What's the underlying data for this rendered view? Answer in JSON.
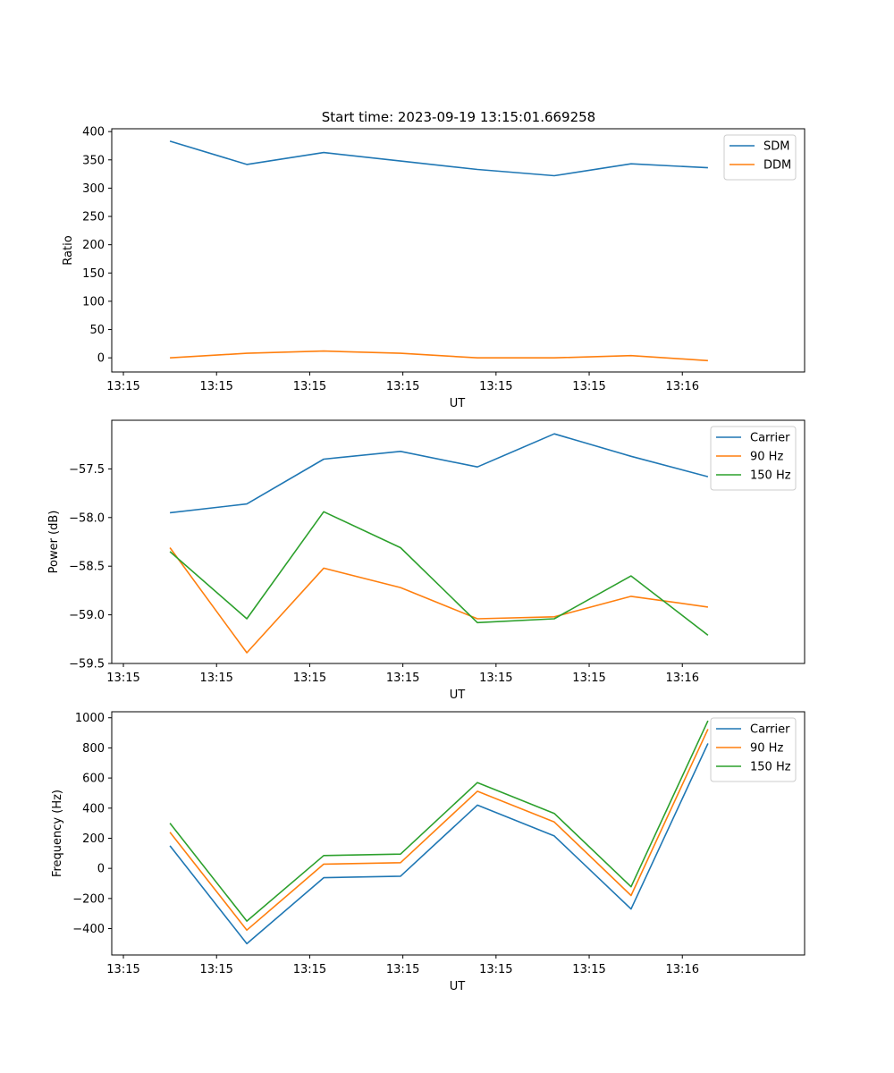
{
  "figure": {
    "title": "Start time: 2023-09-19 13:15:01.669258"
  },
  "chart_data": [
    {
      "type": "line",
      "title": "Start time: 2023-09-19 13:15:01.669258",
      "xlabel": "UT",
      "ylabel": "Ratio",
      "x_tick_labels": [
        "13:15",
        "13:15",
        "13:15",
        "13:15",
        "13:15",
        "13:15",
        "13:16"
      ],
      "y_ticks": [
        0,
        50,
        100,
        150,
        200,
        250,
        300,
        350,
        400
      ],
      "y_tick_labels": [
        "0",
        "50",
        "100",
        "150",
        "200",
        "250",
        "300",
        "350",
        "400"
      ],
      "ylim": [
        -25,
        405
      ],
      "legend_position": "top-right",
      "x": [
        0.5,
        1.16,
        1.82,
        2.48,
        3.14,
        3.8,
        4.46,
        5.12
      ],
      "series": [
        {
          "name": "SDM",
          "color": "#1f77b4",
          "values": [
            383,
            342,
            363,
            348,
            333,
            322,
            343,
            336
          ]
        },
        {
          "name": "DDM",
          "color": "#ff7f0e",
          "values": [
            0,
            8,
            12,
            8,
            0,
            0,
            4,
            -5
          ]
        }
      ]
    },
    {
      "type": "line",
      "title": "",
      "xlabel": "UT",
      "ylabel": "Power (dB)",
      "x_tick_labels": [
        "13:15",
        "13:15",
        "13:15",
        "13:15",
        "13:15",
        "13:15",
        "13:16"
      ],
      "y_ticks": [
        -59.5,
        -59.0,
        -58.5,
        -58.0,
        -57.5
      ],
      "y_tick_labels": [
        "−59.5",
        "−59.0",
        "−58.5",
        "−58.0",
        "−57.5"
      ],
      "ylim": [
        -59.5,
        -57.0
      ],
      "legend_position": "top-right",
      "x": [
        0.5,
        1.16,
        1.82,
        2.48,
        3.14,
        3.8,
        4.46,
        5.12
      ],
      "series": [
        {
          "name": "Carrier",
          "color": "#1f77b4",
          "values": [
            -57.95,
            -57.86,
            -57.4,
            -57.32,
            -57.48,
            -57.14,
            -57.37,
            -57.58
          ]
        },
        {
          "name": "90 Hz",
          "color": "#ff7f0e",
          "values": [
            -58.31,
            -59.39,
            -58.52,
            -58.72,
            -59.04,
            -59.02,
            -58.81,
            -58.92
          ]
        },
        {
          "name": "150 Hz",
          "color": "#2ca02c",
          "values": [
            -58.35,
            -59.04,
            -57.94,
            -58.31,
            -59.08,
            -59.04,
            -58.6,
            -59.21
          ]
        }
      ]
    },
    {
      "type": "line",
      "title": "",
      "xlabel": "UT",
      "ylabel": "Frequency (Hz)",
      "x_tick_labels": [
        "13:15",
        "13:15",
        "13:15",
        "13:15",
        "13:15",
        "13:15",
        "13:16"
      ],
      "y_ticks": [
        -400,
        -200,
        0,
        200,
        400,
        600,
        800,
        1000
      ],
      "y_tick_labels": [
        "−400",
        "−200",
        "0",
        "200",
        "400",
        "600",
        "800",
        "1000"
      ],
      "ylim": [
        -575,
        1040
      ],
      "legend_position": "top-right",
      "x": [
        0.5,
        1.16,
        1.82,
        2.48,
        3.14,
        3.8,
        4.46,
        5.12
      ],
      "series": [
        {
          "name": "Carrier",
          "color": "#1f77b4",
          "values": [
            150,
            -500,
            -62,
            -52,
            420,
            215,
            -270,
            830
          ]
        },
        {
          "name": "90 Hz",
          "color": "#ff7f0e",
          "values": [
            240,
            -410,
            28,
            38,
            512,
            308,
            -180,
            925
          ]
        },
        {
          "name": "150 Hz",
          "color": "#2ca02c",
          "values": [
            300,
            -350,
            85,
            95,
            570,
            365,
            -122,
            980
          ]
        }
      ]
    }
  ]
}
